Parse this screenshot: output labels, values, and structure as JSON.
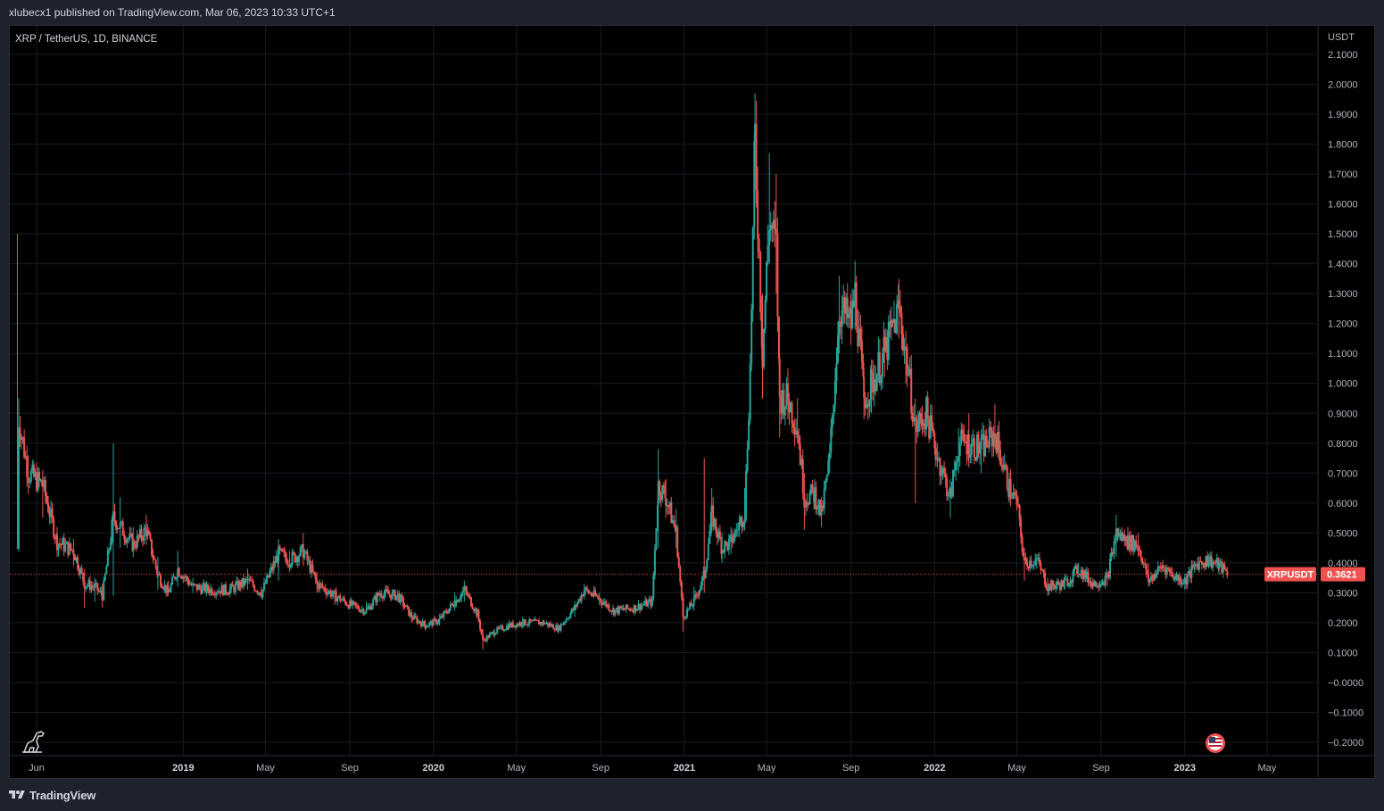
{
  "header": {
    "publisher": "xlubecx1",
    "published_text": "xlubecx1 published on TradingView.com, Mar 06, 2023 10:33 UTC+1"
  },
  "footer": {
    "brand": "TradingView"
  },
  "colors": {
    "background": "#000000",
    "frame": "#1e222d",
    "up": "#26a69a",
    "down": "#ef5350",
    "grid": "#1a1d25",
    "price_line": "#ef5350"
  },
  "chart_data": {
    "type": "candlestick",
    "symbol_title": "XRP / TetherUS, 1D, BINANCE",
    "symbol": "XRPUSDT",
    "currency": "USDT",
    "last_price": "0.3621",
    "last_price_value": 0.3621,
    "ylim": [
      -0.2,
      2.1
    ],
    "y_ticks": [
      "2.1000",
      "2.0000",
      "1.9000",
      "1.8000",
      "1.7000",
      "1.6000",
      "1.5000",
      "1.4000",
      "1.3000",
      "1.2000",
      "1.1000",
      "1.0000",
      "0.9000",
      "0.8000",
      "0.7000",
      "0.6000",
      "0.5000",
      "0.4000",
      "0.3000",
      "0.2000",
      "0.1000",
      "−0.0000",
      "−0.1000",
      "−0.2000"
    ],
    "x_ticks": [
      {
        "label": "Jun",
        "date": "2018-06-01",
        "bold": false
      },
      {
        "label": "2019",
        "date": "2019-01-01",
        "bold": true
      },
      {
        "label": "May",
        "date": "2019-05-01",
        "bold": false
      },
      {
        "label": "Sep",
        "date": "2019-09-01",
        "bold": false
      },
      {
        "label": "2020",
        "date": "2020-01-01",
        "bold": true
      },
      {
        "label": "May",
        "date": "2020-05-01",
        "bold": false
      },
      {
        "label": "Sep",
        "date": "2020-09-01",
        "bold": false
      },
      {
        "label": "2021",
        "date": "2021-01-01",
        "bold": true
      },
      {
        "label": "May",
        "date": "2021-05-01",
        "bold": false
      },
      {
        "label": "Sep",
        "date": "2021-09-01",
        "bold": false
      },
      {
        "label": "2022",
        "date": "2022-01-01",
        "bold": true
      },
      {
        "label": "May",
        "date": "2022-05-01",
        "bold": false
      },
      {
        "label": "Sep",
        "date": "2022-09-01",
        "bold": false
      },
      {
        "label": "2023",
        "date": "2023-01-01",
        "bold": true
      },
      {
        "label": "May",
        "date": "2023-05-01",
        "bold": false
      }
    ],
    "x_range": [
      "2018-04-23",
      "2023-07-13"
    ],
    "grid": true,
    "price_path": [
      [
        "2018-05-04",
        0.45,
        1.5,
        0.45
      ],
      [
        "2018-05-06",
        0.88,
        0.95,
        0.7
      ],
      [
        "2018-05-20",
        0.7,
        0.76,
        0.63
      ],
      [
        "2018-06-10",
        0.66,
        0.71,
        0.55
      ],
      [
        "2018-07-01",
        0.47,
        0.52,
        0.42
      ],
      [
        "2018-07-25",
        0.44,
        0.48,
        0.39
      ],
      [
        "2018-08-10",
        0.33,
        0.38,
        0.25
      ],
      [
        "2018-08-25",
        0.32,
        0.35,
        0.27
      ],
      [
        "2018-09-05",
        0.29,
        0.33,
        0.25
      ],
      [
        "2018-09-21",
        0.55,
        0.8,
        0.29
      ],
      [
        "2018-10-01",
        0.52,
        0.62,
        0.45
      ],
      [
        "2018-10-20",
        0.46,
        0.52,
        0.42
      ],
      [
        "2018-11-08",
        0.51,
        0.56,
        0.46
      ],
      [
        "2018-11-25",
        0.36,
        0.42,
        0.31
      ],
      [
        "2018-12-10",
        0.3,
        0.34,
        0.29
      ],
      [
        "2018-12-24",
        0.38,
        0.44,
        0.32
      ],
      [
        "2019-01-15",
        0.32,
        0.35,
        0.3
      ],
      [
        "2019-02-10",
        0.31,
        0.33,
        0.29
      ],
      [
        "2019-03-10",
        0.31,
        0.33,
        0.3
      ],
      [
        "2019-04-05",
        0.34,
        0.38,
        0.31
      ],
      [
        "2019-04-25",
        0.3,
        0.32,
        0.29
      ],
      [
        "2019-05-20",
        0.43,
        0.48,
        0.34
      ],
      [
        "2019-06-05",
        0.41,
        0.44,
        0.37
      ],
      [
        "2019-06-25",
        0.44,
        0.5,
        0.39
      ],
      [
        "2019-07-15",
        0.33,
        0.37,
        0.3
      ],
      [
        "2019-08-10",
        0.29,
        0.31,
        0.26
      ],
      [
        "2019-09-01",
        0.26,
        0.28,
        0.25
      ],
      [
        "2019-09-25",
        0.24,
        0.27,
        0.23
      ],
      [
        "2019-10-15",
        0.3,
        0.31,
        0.27
      ],
      [
        "2019-11-10",
        0.29,
        0.31,
        0.27
      ],
      [
        "2019-11-30",
        0.22,
        0.24,
        0.2
      ],
      [
        "2019-12-20",
        0.19,
        0.21,
        0.18
      ],
      [
        "2020-01-10",
        0.21,
        0.23,
        0.19
      ],
      [
        "2020-02-01",
        0.27,
        0.3,
        0.24
      ],
      [
        "2020-02-15",
        0.31,
        0.34,
        0.27
      ],
      [
        "2020-03-05",
        0.23,
        0.25,
        0.22
      ],
      [
        "2020-03-13",
        0.14,
        0.18,
        0.11
      ],
      [
        "2020-03-30",
        0.17,
        0.18,
        0.15
      ],
      [
        "2020-04-20",
        0.19,
        0.21,
        0.18
      ],
      [
        "2020-05-10",
        0.2,
        0.22,
        0.19
      ],
      [
        "2020-06-10",
        0.2,
        0.21,
        0.19
      ],
      [
        "2020-07-01",
        0.18,
        0.19,
        0.17
      ],
      [
        "2020-07-25",
        0.25,
        0.27,
        0.22
      ],
      [
        "2020-08-08",
        0.31,
        0.33,
        0.28
      ],
      [
        "2020-08-30",
        0.28,
        0.3,
        0.26
      ],
      [
        "2020-09-20",
        0.24,
        0.25,
        0.23
      ],
      [
        "2020-10-20",
        0.25,
        0.26,
        0.24
      ],
      [
        "2020-11-15",
        0.27,
        0.29,
        0.25
      ],
      [
        "2020-11-24",
        0.66,
        0.78,
        0.45
      ],
      [
        "2020-12-05",
        0.62,
        0.68,
        0.55
      ],
      [
        "2020-12-20",
        0.5,
        0.58,
        0.45
      ],
      [
        "2020-12-30",
        0.22,
        0.3,
        0.17
      ],
      [
        "2021-01-15",
        0.27,
        0.32,
        0.24
      ],
      [
        "2021-01-30",
        0.36,
        0.75,
        0.3
      ],
      [
        "2021-02-10",
        0.56,
        0.65,
        0.5
      ],
      [
        "2021-02-25",
        0.45,
        0.5,
        0.4
      ],
      [
        "2021-03-10",
        0.47,
        0.52,
        0.43
      ],
      [
        "2021-03-30",
        0.57,
        0.65,
        0.52
      ],
      [
        "2021-04-07",
        1.05,
        1.1,
        0.9
      ],
      [
        "2021-04-14",
        1.82,
        1.97,
        1.6
      ],
      [
        "2021-04-25",
        1.1,
        1.3,
        0.95
      ],
      [
        "2021-05-05",
        1.55,
        1.77,
        1.4
      ],
      [
        "2021-05-15",
        1.45,
        1.7,
        1.3
      ],
      [
        "2021-05-20",
        0.95,
        1.1,
        0.82
      ],
      [
        "2021-06-01",
        0.95,
        1.05,
        0.88
      ],
      [
        "2021-06-15",
        0.85,
        0.95,
        0.8
      ],
      [
        "2021-06-25",
        0.62,
        0.7,
        0.51
      ],
      [
        "2021-07-10",
        0.63,
        0.68,
        0.58
      ],
      [
        "2021-07-20",
        0.56,
        0.62,
        0.52
      ],
      [
        "2021-08-01",
        0.75,
        0.8,
        0.7
      ],
      [
        "2021-08-15",
        1.25,
        1.36,
        1.1
      ],
      [
        "2021-09-01",
        1.2,
        1.3,
        1.15
      ],
      [
        "2021-09-07",
        1.3,
        1.41,
        1.18
      ],
      [
        "2021-09-20",
        0.95,
        1.05,
        0.88
      ],
      [
        "2021-10-01",
        1.0,
        1.08,
        0.9
      ],
      [
        "2021-10-20",
        1.1,
        1.18,
        1.02
      ],
      [
        "2021-11-10",
        1.25,
        1.35,
        1.15
      ],
      [
        "2021-11-20",
        1.1,
        1.15,
        1.0
      ],
      [
        "2021-12-04",
        0.85,
        0.95,
        0.6
      ],
      [
        "2021-12-20",
        0.9,
        0.95,
        0.85
      ],
      [
        "2022-01-05",
        0.76,
        0.8,
        0.72
      ],
      [
        "2022-01-24",
        0.62,
        0.68,
        0.55
      ],
      [
        "2022-02-05",
        0.8,
        0.85,
        0.7
      ],
      [
        "2022-02-20",
        0.8,
        0.9,
        0.72
      ],
      [
        "2022-03-10",
        0.78,
        0.82,
        0.7
      ],
      [
        "2022-03-30",
        0.83,
        0.93,
        0.78
      ],
      [
        "2022-04-20",
        0.65,
        0.7,
        0.6
      ],
      [
        "2022-05-01",
        0.6,
        0.64,
        0.58
      ],
      [
        "2022-05-12",
        0.4,
        0.45,
        0.34
      ],
      [
        "2022-05-30",
        0.41,
        0.43,
        0.38
      ],
      [
        "2022-06-15",
        0.32,
        0.35,
        0.29
      ],
      [
        "2022-07-10",
        0.33,
        0.36,
        0.31
      ],
      [
        "2022-07-30",
        0.38,
        0.4,
        0.35
      ],
      [
        "2022-08-20",
        0.33,
        0.35,
        0.32
      ],
      [
        "2022-09-10",
        0.35,
        0.37,
        0.32
      ],
      [
        "2022-09-23",
        0.5,
        0.56,
        0.42
      ],
      [
        "2022-10-10",
        0.47,
        0.52,
        0.44
      ],
      [
        "2022-10-25",
        0.46,
        0.5,
        0.42
      ],
      [
        "2022-11-09",
        0.34,
        0.4,
        0.32
      ],
      [
        "2022-11-30",
        0.39,
        0.41,
        0.37
      ],
      [
        "2022-12-20",
        0.35,
        0.37,
        0.34
      ],
      [
        "2023-01-01",
        0.34,
        0.35,
        0.31
      ],
      [
        "2023-01-20",
        0.4,
        0.42,
        0.38
      ],
      [
        "2023-02-05",
        0.41,
        0.43,
        0.39
      ],
      [
        "2023-02-20",
        0.39,
        0.41,
        0.37
      ],
      [
        "2023-03-06",
        0.3621,
        0.38,
        0.36
      ]
    ]
  }
}
